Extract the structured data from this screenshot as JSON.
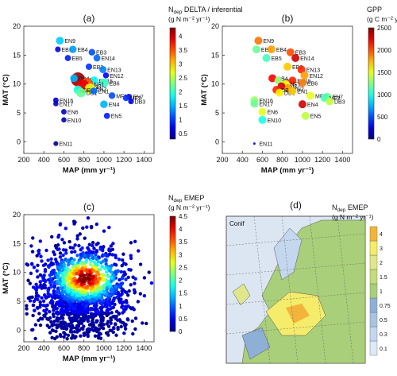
{
  "chart_data": [
    {
      "type": "scatter",
      "panel_label": "(a)",
      "colorbar_title": "N",
      "colorbar_title_sub": "dep",
      "colorbar_title_rest": " DELTA / inferential",
      "colorbar_unit": "(g N m⁻² yr⁻¹)",
      "xlabel": "MAP (mm yr⁻¹)",
      "ylabel": "MAT (°C)",
      "xlim": [
        200,
        1500
      ],
      "ylim": [
        -2,
        20
      ],
      "xticks": [
        "200",
        "400",
        "600",
        "800",
        "1000",
        "1200",
        "1400"
      ],
      "yticks": [
        "0",
        "5",
        "10",
        "15",
        "20"
      ],
      "cbar_ticks": [
        "0.5",
        "1",
        "1.5",
        "2",
        "2.5",
        "3",
        "3.5",
        "4"
      ],
      "cbar_range": [
        0.3,
        4.3
      ],
      "points": [
        {
          "label": "EN9",
          "x": 560,
          "y": 17.5,
          "v": 1.6
        },
        {
          "label": "EB1",
          "x": 540,
          "y": 16.0,
          "v": 0.7
        },
        {
          "label": "EB4",
          "x": 690,
          "y": 16.0,
          "v": 1.4
        },
        {
          "label": "EB3",
          "x": 880,
          "y": 15.5,
          "v": 1.1
        },
        {
          "label": "EN14",
          "x": 930,
          "y": 14.5,
          "v": 1.2
        },
        {
          "label": "EB5",
          "x": 640,
          "y": 14.5,
          "v": 0.9
        },
        {
          "label": "EB2",
          "x": 850,
          "y": 13.0,
          "v": 1.0
        },
        {
          "label": "EN13",
          "x": 990,
          "y": 12.5,
          "v": 1.3
        },
        {
          "label": "EN12",
          "x": 1020,
          "y": 11.5,
          "v": 0.8
        },
        {
          "label": "EN8",
          "x": 740,
          "y": 10.8,
          "v": 4.2
        },
        {
          "label": "DB4",
          "x": 700,
          "y": 11.0,
          "v": 1.5
        },
        {
          "label": "EN15",
          "x": 900,
          "y": 10.6,
          "v": 1.8
        },
        {
          "label": "EB6",
          "x": 1000,
          "y": 10.2,
          "v": 2.0
        },
        {
          "label": "NF1",
          "x": 830,
          "y": 10.0,
          "v": 3.5
        },
        {
          "label": "EN3",
          "x": 790,
          "y": 9.6,
          "v": 3.9
        },
        {
          "label": "EN2",
          "x": 860,
          "y": 9.2,
          "v": 2.7
        },
        {
          "label": "DB2",
          "x": 740,
          "y": 9.0,
          "v": 1.9
        },
        {
          "label": "DB1",
          "x": 770,
          "y": 8.5,
          "v": 2.2
        },
        {
          "label": "EN1",
          "x": 900,
          "y": 8.8,
          "v": 1.2
        },
        {
          "label": "MF1",
          "x": 1080,
          "y": 8.0,
          "v": 1.1
        },
        {
          "label": "EN7",
          "x": 1250,
          "y": 7.8,
          "v": 0.8
        },
        {
          "label": "MF2",
          "x": 1220,
          "y": 7.6,
          "v": 1.0
        },
        {
          "label": "DB3",
          "x": 1270,
          "y": 7.0,
          "v": 0.7
        },
        {
          "label": "EN16",
          "x": 520,
          "y": 7.2,
          "v": 0.6
        },
        {
          "label": "EN17",
          "x": 520,
          "y": 6.6,
          "v": 0.5
        },
        {
          "label": "EN4",
          "x": 1000,
          "y": 6.5,
          "v": 1.5
        },
        {
          "label": "EN6",
          "x": 600,
          "y": 5.2,
          "v": 0.6
        },
        {
          "label": "EN5",
          "x": 1030,
          "y": 4.5,
          "v": 0.9
        },
        {
          "label": "EN10",
          "x": 600,
          "y": 3.8,
          "v": 0.5
        },
        {
          "label": "EN11",
          "x": 520,
          "y": -0.3,
          "v": 0.35
        }
      ]
    },
    {
      "type": "scatter",
      "panel_label": "(b)",
      "colorbar_title": "GPP",
      "colorbar_unit": "(g C m⁻² yr⁻¹)",
      "xlabel": "MAP (mm yr⁻¹)",
      "ylabel": "MAT (°C)",
      "xlim": [
        200,
        1500
      ],
      "ylim": [
        -2,
        20
      ],
      "xticks": [
        "200",
        "400",
        "600",
        "800",
        "1000",
        "1200",
        "1400"
      ],
      "yticks": [
        "0",
        "5",
        "10",
        "15",
        "20"
      ],
      "cbar_ticks": [
        "0",
        "500",
        "1000",
        "1500",
        "2000",
        "2500"
      ],
      "cbar_range": [
        0,
        2500
      ],
      "points": [
        {
          "label": "EN9",
          "x": 560,
          "y": 17.5,
          "v": 1900
        },
        {
          "label": "EB1",
          "x": 540,
          "y": 16.0,
          "v": 1200
        },
        {
          "label": "EB4",
          "x": 690,
          "y": 16.0,
          "v": 1800
        },
        {
          "label": "EB3",
          "x": 880,
          "y": 15.5,
          "v": 2000
        },
        {
          "label": "EN14",
          "x": 930,
          "y": 14.5,
          "v": 2300
        },
        {
          "label": "EB5",
          "x": 640,
          "y": 14.5,
          "v": 1100
        },
        {
          "label": "EB2",
          "x": 850,
          "y": 13.0,
          "v": 1700
        },
        {
          "label": "EN13",
          "x": 990,
          "y": 12.5,
          "v": 2100
        },
        {
          "label": "EN12",
          "x": 1020,
          "y": 11.5,
          "v": 1800
        },
        {
          "label": "DB4",
          "x": 700,
          "y": 11.0,
          "v": 2200
        },
        {
          "label": "EN8",
          "x": 760,
          "y": 10.6,
          "v": 1300
        },
        {
          "label": "EN15",
          "x": 900,
          "y": 10.6,
          "v": 2100
        },
        {
          "label": "EB6",
          "x": 1000,
          "y": 10.2,
          "v": 1900
        },
        {
          "label": "NF1",
          "x": 830,
          "y": 10.0,
          "v": 1600
        },
        {
          "label": "EN3",
          "x": 790,
          "y": 9.6,
          "v": 2300
        },
        {
          "label": "EN2",
          "x": 860,
          "y": 9.2,
          "v": 1800
        },
        {
          "label": "DB2",
          "x": 740,
          "y": 9.0,
          "v": 2100
        },
        {
          "label": "DB1",
          "x": 770,
          "y": 8.5,
          "v": 1600
        },
        {
          "label": "EN1",
          "x": 900,
          "y": 8.8,
          "v": 1700
        },
        {
          "label": "MF1",
          "x": 1080,
          "y": 8.0,
          "v": 1500
        },
        {
          "label": "EN7",
          "x": 1250,
          "y": 7.8,
          "v": 1200
        },
        {
          "label": "MF2",
          "x": 1220,
          "y": 7.6,
          "v": 1100
        },
        {
          "label": "DB3",
          "x": 1270,
          "y": 7.0,
          "v": 1400
        },
        {
          "label": "EN16",
          "x": 520,
          "y": 7.2,
          "v": 1300
        },
        {
          "label": "EN17",
          "x": 520,
          "y": 6.6,
          "v": 1200
        },
        {
          "label": "EN4",
          "x": 1000,
          "y": 6.5,
          "v": 2300
        },
        {
          "label": "EN6",
          "x": 600,
          "y": 5.2,
          "v": 1500
        },
        {
          "label": "EN5",
          "x": 1030,
          "y": 4.5,
          "v": 1400
        },
        {
          "label": "EN10",
          "x": 600,
          "y": 3.8,
          "v": 1000
        },
        {
          "label": "EN11",
          "x": 520,
          "y": -0.3,
          "v": 200
        }
      ]
    },
    {
      "type": "scatter",
      "panel_label": "(c)",
      "colorbar_title": "N",
      "colorbar_title_sub": "dep",
      "colorbar_title_rest": " EMEP",
      "colorbar_unit": "(g N m⁻² yr⁻¹)",
      "xlabel": "MAP (mm yr⁻¹)",
      "ylabel": "MAT (°C)",
      "xlim": [
        200,
        1500
      ],
      "ylim": [
        -2,
        20
      ],
      "xticks": [
        "200",
        "400",
        "600",
        "800",
        "1000",
        "1200",
        "1400"
      ],
      "yticks": [
        "0",
        "5",
        "10",
        "15",
        "20"
      ],
      "cbar_ticks": [
        "0",
        "0.5",
        "1",
        "1.5",
        "2",
        "2.5",
        "3",
        "3.5",
        "4",
        "4.5"
      ],
      "cbar_range": [
        0,
        4.5
      ],
      "point_cloud": "dense EMEP grid-cell scatter; highest values concentrated near MAP 800 mm, MAT 9 °C"
    },
    {
      "type": "heatmap",
      "panel_label": "(d)",
      "map_label": "Conif",
      "colorbar_title": "N",
      "colorbar_title_sub": "dep",
      "colorbar_title_rest": " EMEP",
      "colorbar_unit": "(g N m⁻² yr⁻¹)",
      "cbar_ticks": [
        "0.1",
        "0.3",
        "0.5",
        "0.75",
        "1",
        "1.5",
        "2",
        "3",
        "4"
      ],
      "cbar_colors": [
        "#dde9f5",
        "#c4d7ee",
        "#a9c3e2",
        "#8fb0d6",
        "#a9cf7a",
        "#c4dc7a",
        "#dfe68c",
        "#f4ec6a",
        "#f2b43a"
      ]
    }
  ]
}
